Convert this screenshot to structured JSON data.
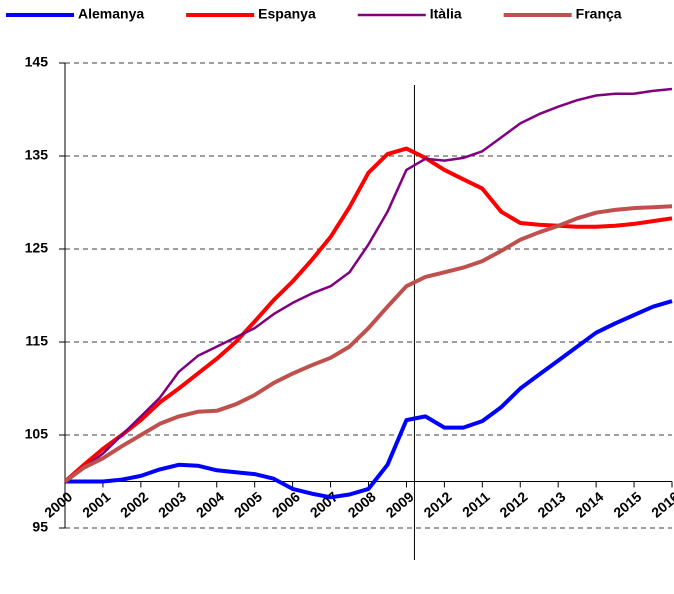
{
  "chart_data": {
    "type": "line",
    "categories": [
      "2000",
      null,
      "2001",
      null,
      "2002",
      null,
      "2003",
      null,
      "2004",
      null,
      "2005",
      null,
      "2006",
      null,
      "2007",
      null,
      "2008",
      null,
      "2009",
      null,
      "2012",
      null,
      "2011",
      null,
      "2012",
      null,
      "2013",
      null,
      "2014",
      null,
      "2015",
      null,
      "2016"
    ],
    "series": [
      {
        "name": "Alemanya",
        "color": "#0000ff",
        "values": [
          100,
          100,
          100,
          100.2,
          100.6,
          101.3,
          101.8,
          101.7,
          101.2,
          101,
          100.8,
          100.3,
          99.2,
          98.7,
          98.3,
          98.6,
          99.2,
          101.8,
          106.6,
          107,
          105.8,
          105.8,
          106.5,
          108,
          110,
          111.5,
          113,
          114.5,
          116,
          117,
          117.9,
          118.8,
          119.4
        ]
      },
      {
        "name": "Espanya",
        "color": "#ff0000",
        "values": [
          100,
          101.8,
          103.5,
          105,
          106.6,
          108.5,
          110,
          111.6,
          113.2,
          115,
          117.2,
          119.5,
          121.5,
          123.8,
          126.3,
          129.5,
          133.2,
          135.2,
          135.8,
          134.8,
          133.5,
          132.5,
          131.5,
          129,
          127.8,
          127.6,
          127.5,
          127.4,
          127.4,
          127.5,
          127.7,
          128,
          128.3
        ]
      },
      {
        "name": "Itàlia",
        "color": "#800080",
        "values": [
          100,
          101.5,
          103,
          105,
          107,
          109,
          111.8,
          113.5,
          114.5,
          115.5,
          116.5,
          118,
          119.2,
          120.2,
          121,
          122.5,
          125.5,
          129,
          133.5,
          134.7,
          134.5,
          134.8,
          135.5,
          137,
          138.5,
          139.5,
          140.3,
          141,
          141.5,
          141.7,
          141.7,
          142,
          142.2
        ]
      },
      {
        "name": "França",
        "color": "#c0504d",
        "values": [
          100,
          101.5,
          102.5,
          103.8,
          105,
          106.2,
          107,
          107.5,
          107.6,
          108.3,
          109.3,
          110.6,
          111.6,
          112.5,
          113.3,
          114.5,
          116.5,
          118.8,
          121,
          122,
          122.5,
          123,
          123.7,
          124.8,
          126,
          126.8,
          127.5,
          128.3,
          128.9,
          129.2,
          129.4,
          129.5,
          129.6
        ]
      }
    ],
    "ylim": [
      95,
      145
    ],
    "yticks": [
      95,
      105,
      115,
      125,
      135,
      145
    ],
    "grid": true,
    "x_axis_crosses": 100
  }
}
